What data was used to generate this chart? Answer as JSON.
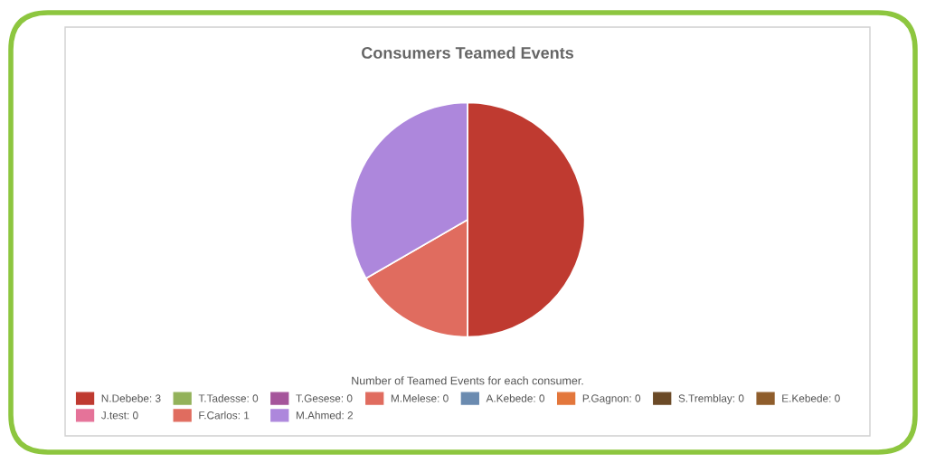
{
  "chart_data": {
    "type": "pie",
    "title": "Consumers Teamed Events",
    "categories": [
      "N.Debebe: 3",
      "T.Tadesse: 0",
      "T.Gesese: 0",
      "M.Melese: 0",
      "A.Kebede: 0",
      "P.Gagnon: 0",
      "S.Tremblay: 0",
      "E.Kebede: 0",
      "J.test: 0",
      "F.Carlos: 1",
      "M.Ahmed: 2"
    ],
    "values": [
      3,
      0,
      0,
      0,
      0,
      0,
      0,
      0,
      0,
      1,
      2
    ],
    "colors": [
      "#bf3a30",
      "#93b25a",
      "#a5559b",
      "#e06c5f",
      "#6b8bb0",
      "#e3773c",
      "#6b4a27",
      "#8f5d2b",
      "#e57399",
      "#e06c5f",
      "#ad87dc"
    ],
    "annotations": [
      "Number of Teamed Events for each consumer."
    ],
    "legend": "bottom"
  }
}
